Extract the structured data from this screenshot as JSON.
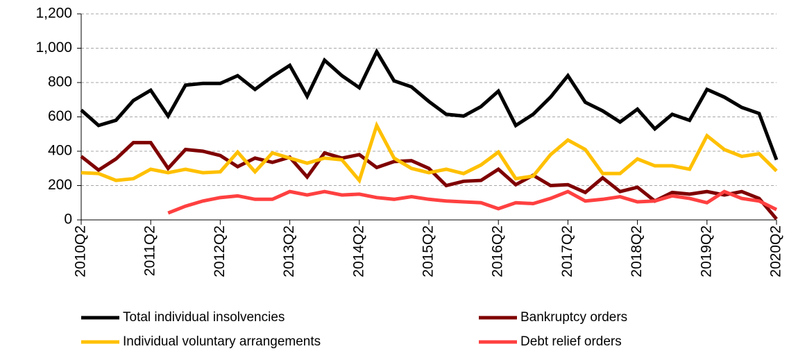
{
  "chart_data": {
    "type": "line",
    "categories": [
      "2010Q2",
      null,
      null,
      null,
      "2011Q2",
      null,
      null,
      null,
      "2012Q2",
      null,
      null,
      null,
      "2013Q2",
      null,
      null,
      null,
      "2014Q2",
      null,
      null,
      null,
      "2015Q2",
      null,
      null,
      null,
      "2016Q2",
      null,
      null,
      null,
      "2017Q2",
      null,
      null,
      null,
      "2018Q2",
      null,
      null,
      null,
      "2019Q2",
      null,
      null,
      null,
      "2020Q2"
    ],
    "series": [
      {
        "name": "Total individual insolvencies",
        "color": "#000000",
        "values": [
          640,
          550,
          580,
          695,
          755,
          605,
          785,
          795,
          795,
          840,
          760,
          835,
          900,
          720,
          930,
          840,
          770,
          980,
          810,
          775,
          690,
          615,
          605,
          660,
          750,
          550,
          615,
          715,
          840,
          685,
          635,
          570,
          645,
          530,
          615,
          580,
          760,
          715,
          655,
          620,
          350
        ]
      },
      {
        "name": "Bankruptcy orders",
        "color": "#7f0000",
        "values": [
          370,
          290,
          355,
          450,
          450,
          300,
          410,
          400,
          375,
          310,
          360,
          335,
          365,
          250,
          390,
          360,
          380,
          305,
          340,
          345,
          300,
          200,
          225,
          230,
          295,
          205,
          260,
          200,
          205,
          160,
          245,
          165,
          190,
          110,
          160,
          150,
          165,
          145,
          165,
          125,
          5
        ]
      },
      {
        "name": "Individual voluntary arrangements",
        "color": "#ffc000",
        "values": [
          275,
          270,
          230,
          240,
          295,
          275,
          295,
          275,
          280,
          395,
          280,
          390,
          360,
          330,
          360,
          350,
          230,
          550,
          360,
          300,
          275,
          295,
          270,
          320,
          395,
          240,
          255,
          380,
          465,
          410,
          270,
          270,
          355,
          315,
          315,
          295,
          490,
          410,
          370,
          385,
          285
        ]
      },
      {
        "name": "Debt relief orders",
        "color": "#ff4040",
        "values": [
          null,
          null,
          null,
          null,
          null,
          40,
          80,
          110,
          130,
          140,
          120,
          120,
          165,
          145,
          165,
          145,
          150,
          130,
          120,
          135,
          120,
          110,
          105,
          100,
          65,
          100,
          95,
          125,
          165,
          110,
          120,
          135,
          105,
          110,
          140,
          125,
          100,
          165,
          125,
          110,
          60
        ]
      }
    ],
    "ylim": [
      0,
      1200
    ],
    "yticks": [
      0,
      200,
      400,
      600,
      800,
      {
        "value": 1000,
        "label": "1,000"
      },
      {
        "value": 1200,
        "label": "1,200"
      }
    ],
    "grid": true
  }
}
